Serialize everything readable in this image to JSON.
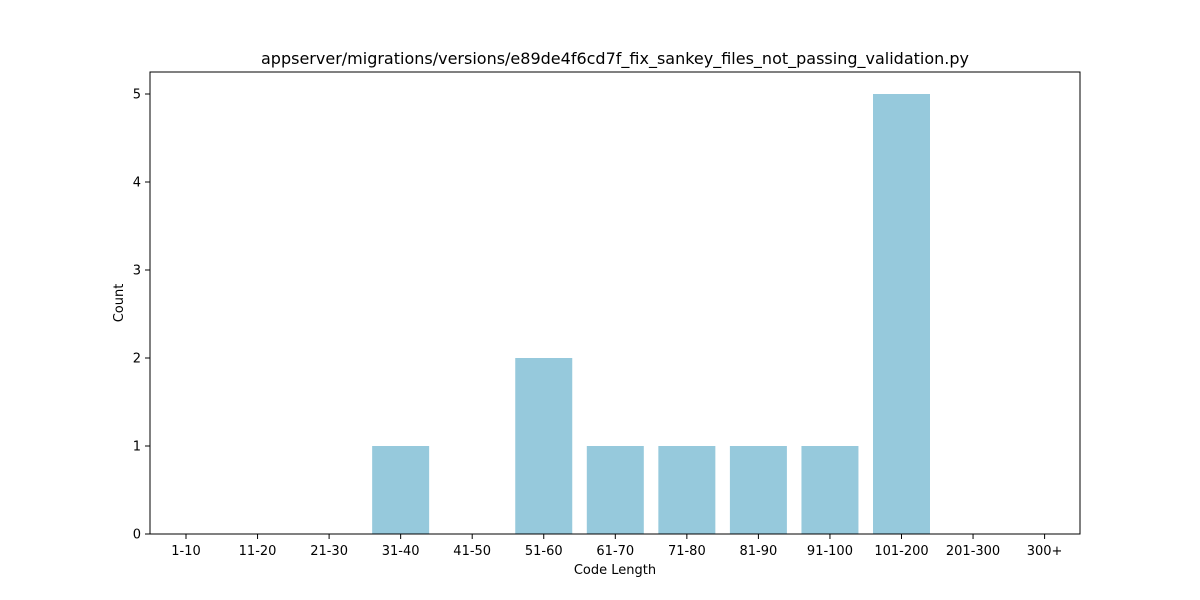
{
  "chart_data": {
    "type": "bar",
    "title": "appserver/migrations/versions/e89de4f6cd7f_fix_sankey_files_not_passing_validation.py",
    "xlabel": "Code Length",
    "ylabel": "Count",
    "categories": [
      "1-10",
      "11-20",
      "21-30",
      "31-40",
      "41-50",
      "51-60",
      "61-70",
      "71-80",
      "81-90",
      "91-100",
      "101-200",
      "201-300",
      "300+"
    ],
    "values": [
      0,
      0,
      0,
      1,
      0,
      2,
      1,
      1,
      1,
      1,
      5,
      0,
      0
    ],
    "ylim": [
      0,
      5.25
    ],
    "yticks": [
      "0",
      "1",
      "2",
      "3",
      "4",
      "5"
    ],
    "grid": false,
    "bar_color": "#96c9dc"
  }
}
